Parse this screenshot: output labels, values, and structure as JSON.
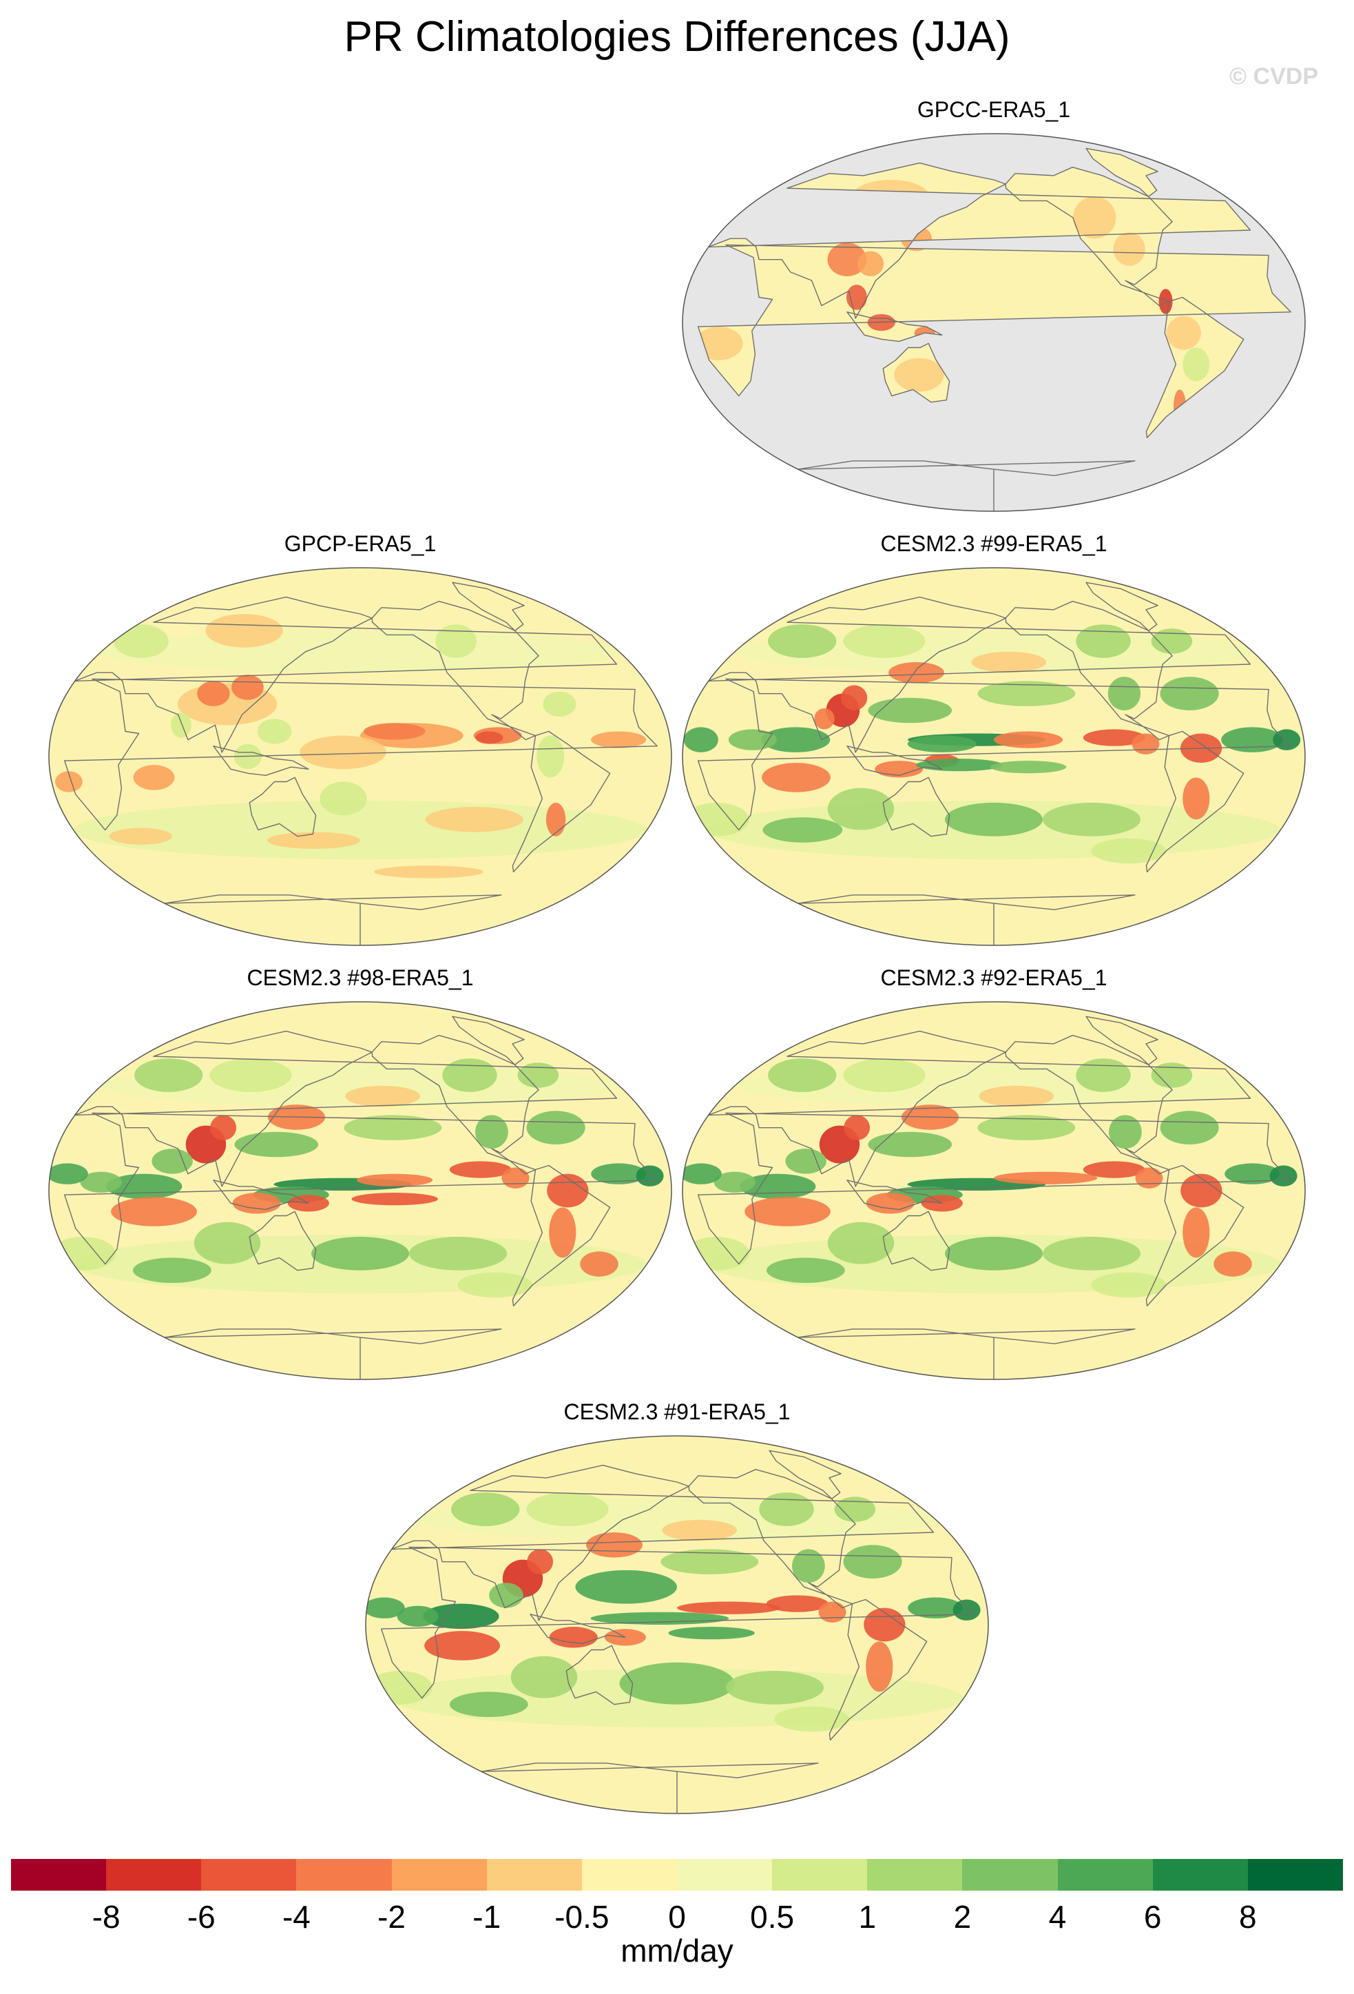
{
  "header": {
    "title": "PR Climatologies Differences (JJA)",
    "watermark": "© CVDP"
  },
  "panels": [
    {
      "id": "gpcc",
      "title": "GPCC-ERA5_1",
      "ocean_color": "#e6e6e6",
      "land_only": true
    },
    {
      "id": "gpcp",
      "title": "GPCP-ERA5_1",
      "ocean_color": "#fdf3b0",
      "land_only": false
    },
    {
      "id": "cesm99",
      "title": "CESM2.3 #99-ERA5_1",
      "ocean_color": "#fdf3b0",
      "land_only": false
    },
    {
      "id": "cesm98",
      "title": "CESM2.3 #98-ERA5_1",
      "ocean_color": "#fdf3b0",
      "land_only": false
    },
    {
      "id": "cesm92",
      "title": "CESM2.3 #92-ERA5_1",
      "ocean_color": "#fdf3b0",
      "land_only": false
    },
    {
      "id": "cesm91",
      "title": "CESM2.3 #91-ERA5_1",
      "ocean_color": "#fdf3b0",
      "land_only": false
    }
  ],
  "colorbar": {
    "units": "mm/day",
    "colors": [
      "#a50026",
      "#d73027",
      "#e95638",
      "#f57c4a",
      "#fca35c",
      "#fdcd7e",
      "#fef4ac",
      "#f2f8b4",
      "#d4ec8c",
      "#a7d872",
      "#7dc264",
      "#4da856",
      "#1f8a46",
      "#006837"
    ],
    "labels": [
      "-8",
      "-6",
      "-4",
      "-2",
      "-1",
      "-0.5",
      "0",
      "0.5",
      "1",
      "2",
      "4",
      "6",
      "8"
    ]
  }
}
